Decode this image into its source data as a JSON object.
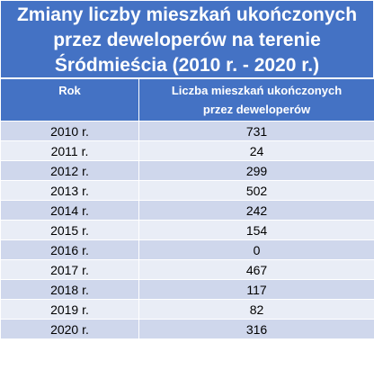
{
  "title": {
    "line1": "Zmiany liczby mieszkań ukończonych",
    "line2": "przez deweloperów na terenie",
    "line3": "Śródmieścia (2010 r. - 2020 r.)"
  },
  "table": {
    "headers": {
      "year": "Rok",
      "value_line1": "Liczba mieszkań ukończonych",
      "value_line2": "przez deweloperów"
    },
    "rows": [
      {
        "year": "2010 r.",
        "value": "731"
      },
      {
        "year": "2011 r.",
        "value": "24"
      },
      {
        "year": "2012 r.",
        "value": "299"
      },
      {
        "year": "2013 r.",
        "value": "502"
      },
      {
        "year": "2014 r.",
        "value": "242"
      },
      {
        "year": "2015 r.",
        "value": "154"
      },
      {
        "year": "2016 r.",
        "value": "0"
      },
      {
        "year": "2017 r.",
        "value": "467"
      },
      {
        "year": "2018 r.",
        "value": "117"
      },
      {
        "year": "2019 r.",
        "value": "82"
      },
      {
        "year": "2020 r.",
        "value": "316"
      }
    ]
  },
  "colors": {
    "header_bg": "#4472c4",
    "row_dark": "#cfd7ec",
    "row_light": "#e9edf6"
  }
}
